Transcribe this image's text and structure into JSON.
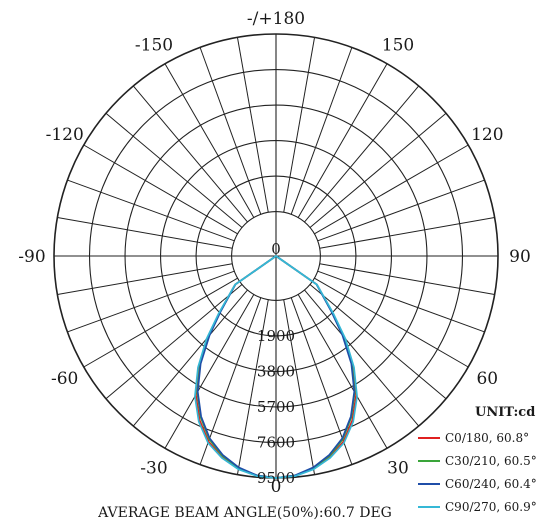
{
  "chart_data": {
    "type": "polar",
    "title": "",
    "unit_label": "UNIT:cd",
    "footer": "AVERAGE BEAM ANGLE(50%):60.7 DEG",
    "angle_labels": [
      {
        "angle": 180,
        "text": "-/+180"
      },
      {
        "angle": 150,
        "text": "150"
      },
      {
        "angle": -150,
        "text": "-150"
      },
      {
        "angle": 120,
        "text": "120"
      },
      {
        "angle": -120,
        "text": "-120"
      },
      {
        "angle": 90,
        "text": "90"
      },
      {
        "angle": -90,
        "text": "-90"
      },
      {
        "angle": 60,
        "text": "60"
      },
      {
        "angle": -60,
        "text": "-60"
      },
      {
        "angle": 30,
        "text": "30"
      },
      {
        "angle": -30,
        "text": "-30"
      },
      {
        "angle": 0,
        "text": "0"
      }
    ],
    "rings": [
      {
        "value": 0,
        "text": "0"
      },
      {
        "value": 1900,
        "text": "1900"
      },
      {
        "value": 3800,
        "text": "3800"
      },
      {
        "value": 5700,
        "text": "5700"
      },
      {
        "value": 7600,
        "text": "7600"
      },
      {
        "value": 9500,
        "text": "9500"
      }
    ],
    "r_max": 9500,
    "angle_step": 10,
    "series": [
      {
        "name": "C0/180, 60.8°",
        "color": "#e02020",
        "angles": [
          0,
          5,
          10,
          15,
          20,
          25,
          30,
          35,
          40,
          45,
          50,
          55,
          60
        ],
        "values": [
          9500,
          9420,
          9160,
          8750,
          8190,
          7300,
          6200,
          4800,
          3300,
          1900,
          900,
          300,
          0
        ]
      },
      {
        "name": "C30/210, 60.5°",
        "color": "#3aa53a",
        "angles": [
          0,
          5,
          10,
          15,
          20,
          25,
          30,
          35,
          40,
          45,
          50,
          55,
          60
        ],
        "values": [
          9500,
          9410,
          9140,
          8690,
          8060,
          7150,
          6050,
          4700,
          3200,
          1850,
          870,
          280,
          0
        ]
      },
      {
        "name": "C60/240, 60.4°",
        "color": "#1f4ea8",
        "angles": [
          0,
          5,
          10,
          15,
          20,
          25,
          30,
          35,
          40,
          45,
          50,
          55,
          60
        ],
        "values": [
          9500,
          9400,
          9110,
          8640,
          8000,
          7100,
          6000,
          4650,
          3150,
          1800,
          850,
          270,
          0
        ]
      },
      {
        "name": "C90/270, 60.9°",
        "color": "#35b8d6",
        "angles": [
          0,
          5,
          10,
          15,
          20,
          25,
          30,
          35,
          40,
          45,
          50,
          55,
          60
        ],
        "values": [
          9500,
          9440,
          9210,
          8810,
          8260,
          7400,
          6300,
          4900,
          3400,
          1950,
          920,
          310,
          0
        ]
      }
    ]
  }
}
